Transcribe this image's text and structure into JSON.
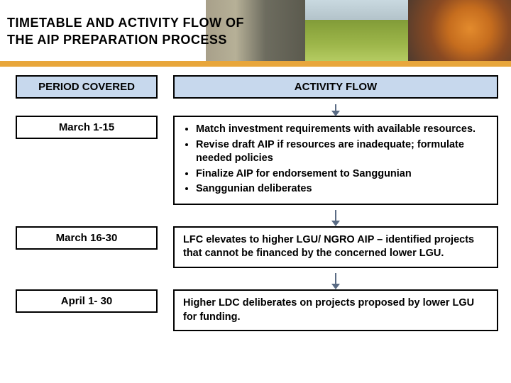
{
  "colors": {
    "gold_bar": "#e8a63b",
    "header_blue": "#c7d8ed",
    "arrow": "#5a6b84",
    "text": "#000000",
    "border": "#000000"
  },
  "title_line1": "TIMETABLE AND ACTIVITY FLOW OF",
  "title_line2": "THE AIP PREPARATION PROCESS",
  "headers": {
    "period": "PERIOD COVERED",
    "activity": "ACTIVITY FLOW"
  },
  "rows": [
    {
      "period": "March 1-15",
      "type": "list",
      "items": [
        "Match investment requirements with available resources.",
        "Revise draft AIP if resources are inadequate; formulate needed policies",
        "Finalize AIP for endorsement to Sanggunian",
        "Sanggunian deliberates"
      ]
    },
    {
      "period": "March 16-30",
      "type": "text",
      "text": "LFC elevates to higher LGU/ NGRO AIP – identified projects that cannot be financed by the concerned lower LGU."
    },
    {
      "period": "April 1- 30",
      "type": "text",
      "text": "Higher LDC deliberates on projects proposed by lower LGU for funding."
    }
  ]
}
